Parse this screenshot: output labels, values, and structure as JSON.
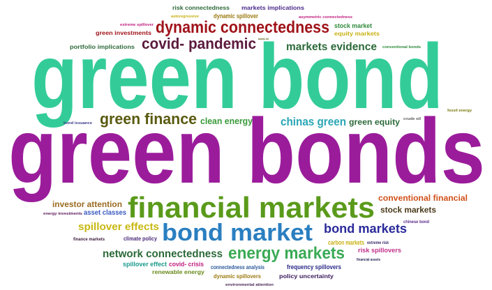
{
  "words": [
    {
      "text": "green bond",
      "color": "#33cc99"
    },
    {
      "text": "green bonds",
      "color": "#9b1c9b"
    },
    {
      "text": "financial markets",
      "color": "#5a9a1a"
    },
    {
      "text": "bond market",
      "color": "#2a7fc0"
    },
    {
      "text": "dynamic connectedness",
      "color": "#a0131a"
    },
    {
      "text": "covid- pandemic",
      "color": "#5b1a3d"
    },
    {
      "text": "markets evidence",
      "color": "#2d6a3a"
    },
    {
      "text": "green finance",
      "color": "#5a5a10"
    },
    {
      "text": "clean energy",
      "color": "#3a9a3a"
    },
    {
      "text": "chinas green",
      "color": "#2aa6b5"
    },
    {
      "text": "green equity",
      "color": "#2d6a3a"
    },
    {
      "text": "energy markets",
      "color": "#3aaa55"
    },
    {
      "text": "network connectedness",
      "color": "#2d6a3a"
    },
    {
      "text": "bond markets",
      "color": "#2a2a9a"
    },
    {
      "text": "spillover effects",
      "color": "#c8b810"
    },
    {
      "text": "investor attention",
      "color": "#9a6a20"
    },
    {
      "text": "asset classes",
      "color": "#3a5abf"
    },
    {
      "text": "conventional financial",
      "color": "#d0501a"
    },
    {
      "text": "stock markets",
      "color": "#4a3a1a"
    },
    {
      "text": "climate policy",
      "color": "#4a2a7a"
    },
    {
      "text": "finance markets",
      "color": "#3a1a3a"
    },
    {
      "text": "energy investments",
      "color": "#5a1a5a"
    },
    {
      "text": "carbon markets",
      "color": "#c8b010"
    },
    {
      "text": "extreme risk",
      "color": "#3a2a6a"
    },
    {
      "text": "risk spillovers",
      "color": "#c0308a"
    },
    {
      "text": "chinese bond",
      "color": "#5a2a8a"
    },
    {
      "text": "financial assets",
      "color": "#2a2a5a"
    },
    {
      "text": "spillover effect",
      "color": "#1a9a8a"
    },
    {
      "text": "covid- crisis",
      "color": "#c02080"
    },
    {
      "text": "connectedness analysis",
      "color": "#2a5a9a"
    },
    {
      "text": "frequency spillovers",
      "color": "#2a2a8a"
    },
    {
      "text": "renewable energy",
      "color": "#6a8a1a"
    },
    {
      "text": "dynamic spillovers",
      "color": "#9a7a10"
    },
    {
      "text": "policy uncertainty",
      "color": "#3a1a5a"
    },
    {
      "text": "environmental attention",
      "color": "#4a2a5a"
    },
    {
      "text": "risk connectedness",
      "color": "#2d6a3a"
    },
    {
      "text": "markets implications",
      "color": "#4a2a8a"
    },
    {
      "text": "autoregressive",
      "color": "#c8b010"
    },
    {
      "text": "dynamic spillover",
      "color": "#9a7a10"
    },
    {
      "text": "asymmetric connectedness",
      "color": "#c02080"
    },
    {
      "text": "extreme spillover",
      "color": "#c02080"
    },
    {
      "text": "stock market",
      "color": "#2d8a3a"
    },
    {
      "text": "green investments",
      "color": "#a0131a"
    },
    {
      "text": "equity markets",
      "color": "#c8b010"
    },
    {
      "text": "bonds oil",
      "color": "#5a5a10"
    },
    {
      "text": "portfolio implications",
      "color": "#2d6a3a"
    },
    {
      "text": "conventional bonds",
      "color": "#2d8a3a"
    },
    {
      "text": "fossil energy",
      "color": "#7a7a10"
    },
    {
      "text": "bond issuance",
      "color": "#3a3a8a"
    },
    {
      "text": "crude oil",
      "color": "#5a5a5a"
    }
  ]
}
